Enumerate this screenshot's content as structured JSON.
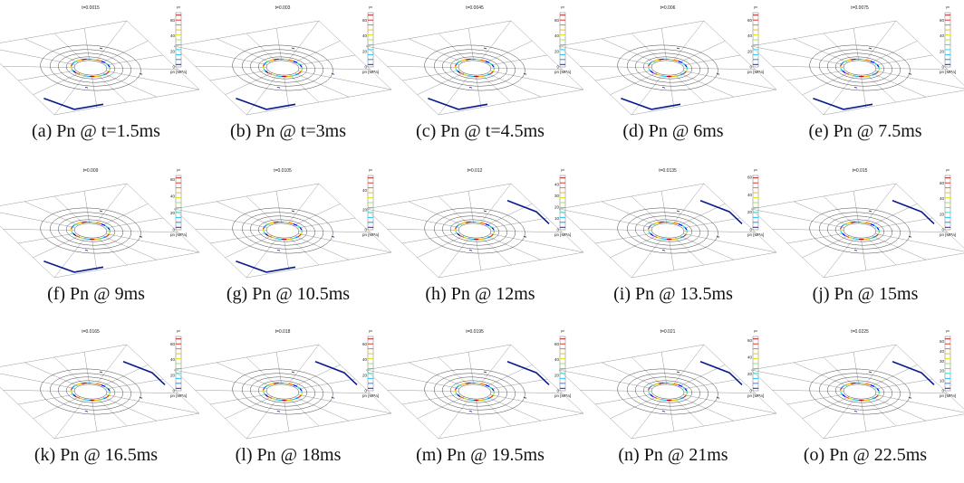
{
  "figure": {
    "colorbar_unit_label": "pn [MPa]",
    "colorbar_title": "pn",
    "panels": [
      {
        "time_label": "t=0.0015",
        "caption": "(a) Pn @ t=1.5ms",
        "ticks": [
          "60",
          "40",
          "20",
          "0"
        ],
        "cbar_max": 70,
        "contact": "corner"
      },
      {
        "time_label": "t=0.003",
        "caption": "(b) Pn @ t=3ms",
        "ticks": [
          "60",
          "40",
          "20",
          "0"
        ],
        "cbar_max": 70,
        "contact": "corner"
      },
      {
        "time_label": "t=0.0045",
        "caption": "(c) Pn @ t=4.5ms",
        "ticks": [
          "60",
          "40",
          "20",
          "0"
        ],
        "cbar_max": 70,
        "contact": "corner"
      },
      {
        "time_label": "t=0.006",
        "caption": "(d) Pn @ 6ms",
        "ticks": [
          "60",
          "40",
          "20",
          "0"
        ],
        "cbar_max": 70,
        "contact": "corner"
      },
      {
        "time_label": "t=0.0075",
        "caption": "(e) Pn @ 7.5ms",
        "ticks": [
          "60",
          "40",
          "20",
          "0"
        ],
        "cbar_max": 70,
        "contact": "corner"
      },
      {
        "time_label": "t=0.009",
        "caption": "(f) Pn @ 9ms",
        "ticks": [
          "60",
          "40",
          "20",
          "0"
        ],
        "cbar_max": 65,
        "contact": "corner"
      },
      {
        "time_label": "t=0.0105",
        "caption": "(g) Pn @ 10.5ms",
        "ticks": [
          "40",
          "20",
          "0"
        ],
        "cbar_max": 55,
        "contact": "corner"
      },
      {
        "time_label": "t=0.012",
        "caption": "(h) Pn @ 12ms",
        "ticks": [
          "40",
          "30",
          "20",
          "10",
          "0"
        ],
        "cbar_max": 48,
        "contact": "edge"
      },
      {
        "time_label": "t=0.0135",
        "caption": "(i) Pn @ 13.5ms",
        "ticks": [
          "60",
          "40",
          "20",
          "0"
        ],
        "cbar_max": 62,
        "contact": "edge"
      },
      {
        "time_label": "t=0.015",
        "caption": "(j) Pn @ 15ms",
        "ticks": [
          "60",
          "40",
          "20",
          "0"
        ],
        "cbar_max": 70,
        "contact": "edge"
      },
      {
        "time_label": "t=0.0165",
        "caption": "(k) Pn @ 16.5ms",
        "ticks": [
          "60",
          "40",
          "20",
          "0"
        ],
        "cbar_max": 70,
        "contact": "edge"
      },
      {
        "time_label": "t=0.018",
        "caption": "(l) Pn @ 18ms",
        "ticks": [
          "60",
          "40",
          "20",
          "0"
        ],
        "cbar_max": 70,
        "contact": "edge"
      },
      {
        "time_label": "t=0.0195",
        "caption": "(m) Pn @ 19.5ms",
        "ticks": [
          "60",
          "40",
          "20",
          "0"
        ],
        "cbar_max": 70,
        "contact": "edge"
      },
      {
        "time_label": "t=0.021",
        "caption": "(n) Pn @ 21ms",
        "ticks": [
          "60",
          "40",
          "20",
          "0"
        ],
        "cbar_max": 65,
        "contact": "edge"
      },
      {
        "time_label": "t=0.0225",
        "caption": "(o) Pn @ 22.5ms",
        "ticks": [
          "50",
          "40",
          "30",
          "20",
          "10",
          "0"
        ],
        "cbar_max": 55,
        "contact": "edge"
      }
    ],
    "colors": {
      "mesh": "#9a9a9a",
      "ring": "#333333",
      "contact": "#0a1a8c",
      "contour_scale": [
        "#0000ff",
        "#0080ff",
        "#00c0ff",
        "#00e0c0",
        "#40e080",
        "#a0e040",
        "#e0e000",
        "#ffb000",
        "#ff6000",
        "#e02000",
        "#b00000"
      ]
    }
  }
}
